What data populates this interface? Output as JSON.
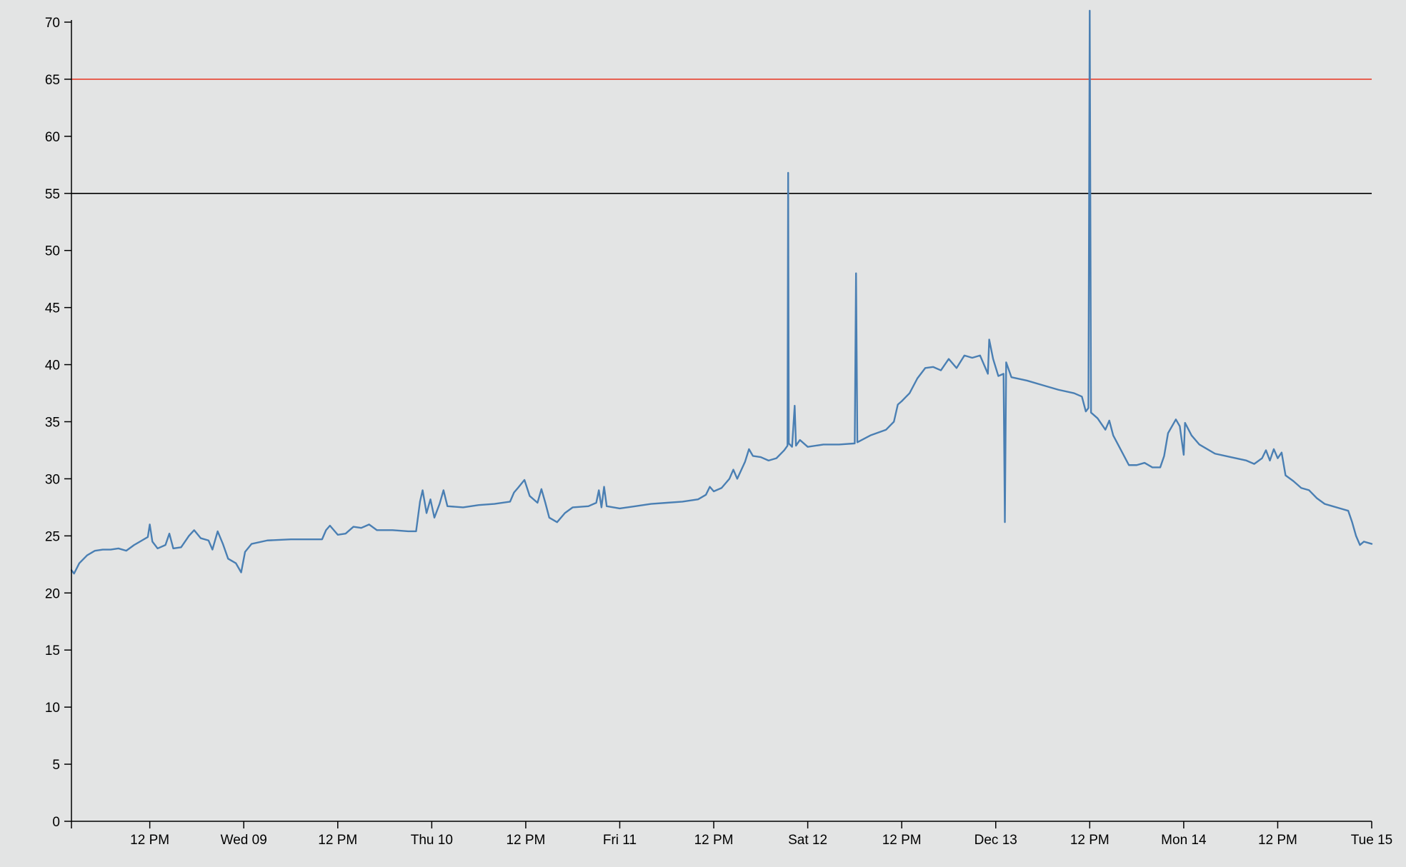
{
  "chart_data": {
    "type": "line",
    "title": "",
    "xlabel": "",
    "ylabel": "",
    "grid": false,
    "legend": "none",
    "x_range": [
      "2020-12-08T02:00",
      "2020-12-15T00:00"
    ],
    "ylim": [
      0,
      70
    ],
    "y_ticks": [
      0,
      5,
      10,
      15,
      20,
      25,
      30,
      35,
      40,
      45,
      50,
      55,
      60,
      65,
      70
    ],
    "x_ticks": [
      {
        "t": "2020-12-08T12:00",
        "label": "12 PM"
      },
      {
        "t": "2020-12-09T00:00",
        "label": "Wed 09"
      },
      {
        "t": "2020-12-09T12:00",
        "label": "12 PM"
      },
      {
        "t": "2020-12-10T00:00",
        "label": "Thu 10"
      },
      {
        "t": "2020-12-10T12:00",
        "label": "12 PM"
      },
      {
        "t": "2020-12-11T00:00",
        "label": "Fri 11"
      },
      {
        "t": "2020-12-11T12:00",
        "label": "12 PM"
      },
      {
        "t": "2020-12-12T00:00",
        "label": "Sat 12"
      },
      {
        "t": "2020-12-12T12:00",
        "label": "12 PM"
      },
      {
        "t": "2020-12-13T00:00",
        "label": "Dec 13"
      },
      {
        "t": "2020-12-13T12:00",
        "label": "12 PM"
      },
      {
        "t": "2020-12-14T00:00",
        "label": "Mon 14"
      },
      {
        "t": "2020-12-14T12:00",
        "label": "12 PM"
      },
      {
        "t": "2020-12-15T00:00",
        "label": "Tue 15"
      }
    ],
    "thresholds": [
      {
        "value": 65,
        "color": "#e8412e"
      },
      {
        "value": 55,
        "color": "#000000"
      }
    ],
    "series": [
      {
        "color": "#4a7fb3",
        "points": [
          [
            "2020-12-08T02:00",
            22.0
          ],
          [
            "2020-12-08T02:20",
            21.7
          ],
          [
            "2020-12-08T03:00",
            22.6
          ],
          [
            "2020-12-08T04:00",
            23.3
          ],
          [
            "2020-12-08T05:00",
            23.7
          ],
          [
            "2020-12-08T06:00",
            23.8
          ],
          [
            "2020-12-08T07:00",
            23.8
          ],
          [
            "2020-12-08T08:00",
            23.9
          ],
          [
            "2020-12-08T09:00",
            23.7
          ],
          [
            "2020-12-08T10:00",
            24.2
          ],
          [
            "2020-12-08T11:00",
            24.6
          ],
          [
            "2020-12-08T11:45",
            24.9
          ],
          [
            "2020-12-08T12:00",
            26.0
          ],
          [
            "2020-12-08T12:20",
            24.5
          ],
          [
            "2020-12-08T13:00",
            23.9
          ],
          [
            "2020-12-08T14:00",
            24.2
          ],
          [
            "2020-12-08T14:30",
            25.2
          ],
          [
            "2020-12-08T15:00",
            23.9
          ],
          [
            "2020-12-08T16:00",
            24.0
          ],
          [
            "2020-12-08T17:00",
            25.0
          ],
          [
            "2020-12-08T17:40",
            25.5
          ],
          [
            "2020-12-08T18:30",
            24.8
          ],
          [
            "2020-12-08T19:30",
            24.6
          ],
          [
            "2020-12-08T20:00",
            23.8
          ],
          [
            "2020-12-08T20:40",
            25.4
          ],
          [
            "2020-12-08T21:20",
            24.3
          ],
          [
            "2020-12-08T22:00",
            23.0
          ],
          [
            "2020-12-08T23:00",
            22.6
          ],
          [
            "2020-12-08T23:40",
            21.8
          ],
          [
            "2020-12-09T00:10",
            23.6
          ],
          [
            "2020-12-09T01:00",
            24.3
          ],
          [
            "2020-12-09T03:00",
            24.6
          ],
          [
            "2020-12-09T06:00",
            24.7
          ],
          [
            "2020-12-09T09:00",
            24.7
          ],
          [
            "2020-12-09T10:00",
            24.7
          ],
          [
            "2020-12-09T10:30",
            25.5
          ],
          [
            "2020-12-09T11:00",
            25.9
          ],
          [
            "2020-12-09T12:00",
            25.1
          ],
          [
            "2020-12-09T13:00",
            25.2
          ],
          [
            "2020-12-09T14:00",
            25.8
          ],
          [
            "2020-12-09T15:00",
            25.7
          ],
          [
            "2020-12-09T16:00",
            26.0
          ],
          [
            "2020-12-09T17:00",
            25.5
          ],
          [
            "2020-12-09T19:00",
            25.5
          ],
          [
            "2020-12-09T21:00",
            25.4
          ],
          [
            "2020-12-09T22:00",
            25.4
          ],
          [
            "2020-12-09T22:30",
            28.0
          ],
          [
            "2020-12-09T22:50",
            29.0
          ],
          [
            "2020-12-09T23:20",
            27.0
          ],
          [
            "2020-12-09T23:50",
            28.2
          ],
          [
            "2020-12-10T00:20",
            26.6
          ],
          [
            "2020-12-10T01:00",
            27.8
          ],
          [
            "2020-12-10T01:30",
            29.0
          ],
          [
            "2020-12-10T02:00",
            27.6
          ],
          [
            "2020-12-10T04:00",
            27.5
          ],
          [
            "2020-12-10T06:00",
            27.7
          ],
          [
            "2020-12-10T08:00",
            27.8
          ],
          [
            "2020-12-10T10:00",
            28.0
          ],
          [
            "2020-12-10T10:30",
            28.8
          ],
          [
            "2020-12-10T11:00",
            29.2
          ],
          [
            "2020-12-10T11:50",
            29.9
          ],
          [
            "2020-12-10T12:30",
            28.5
          ],
          [
            "2020-12-10T13:30",
            27.9
          ],
          [
            "2020-12-10T14:00",
            29.1
          ],
          [
            "2020-12-10T14:30",
            27.9
          ],
          [
            "2020-12-10T15:00",
            26.6
          ],
          [
            "2020-12-10T16:00",
            26.2
          ],
          [
            "2020-12-10T17:00",
            27.0
          ],
          [
            "2020-12-10T18:00",
            27.5
          ],
          [
            "2020-12-10T20:00",
            27.6
          ],
          [
            "2020-12-10T21:00",
            27.9
          ],
          [
            "2020-12-10T21:20",
            29.0
          ],
          [
            "2020-12-10T21:40",
            27.5
          ],
          [
            "2020-12-10T22:00",
            29.3
          ],
          [
            "2020-12-10T22:20",
            27.6
          ],
          [
            "2020-12-11T00:00",
            27.4
          ],
          [
            "2020-12-11T02:00",
            27.6
          ],
          [
            "2020-12-11T04:00",
            27.8
          ],
          [
            "2020-12-11T06:00",
            27.9
          ],
          [
            "2020-12-11T08:00",
            28.0
          ],
          [
            "2020-12-11T10:00",
            28.2
          ],
          [
            "2020-12-11T11:00",
            28.6
          ],
          [
            "2020-12-11T11:30",
            29.3
          ],
          [
            "2020-12-11T12:00",
            28.9
          ],
          [
            "2020-12-11T13:00",
            29.2
          ],
          [
            "2020-12-11T14:00",
            30.0
          ],
          [
            "2020-12-11T14:30",
            30.8
          ],
          [
            "2020-12-11T15:00",
            30.0
          ],
          [
            "2020-12-11T16:00",
            31.5
          ],
          [
            "2020-12-11T16:30",
            32.6
          ],
          [
            "2020-12-11T17:00",
            32.0
          ],
          [
            "2020-12-11T18:00",
            31.9
          ],
          [
            "2020-12-11T19:00",
            31.6
          ],
          [
            "2020-12-11T20:00",
            31.8
          ],
          [
            "2020-12-11T21:00",
            32.5
          ],
          [
            "2020-12-11T21:25",
            32.9
          ],
          [
            "2020-12-11T21:30",
            56.8
          ],
          [
            "2020-12-11T21:35",
            33.1
          ],
          [
            "2020-12-11T22:00",
            32.8
          ],
          [
            "2020-12-11T22:20",
            36.4
          ],
          [
            "2020-12-11T22:30",
            32.9
          ],
          [
            "2020-12-11T23:00",
            33.4
          ],
          [
            "2020-12-12T00:00",
            32.8
          ],
          [
            "2020-12-12T02:00",
            33.0
          ],
          [
            "2020-12-12T04:00",
            33.0
          ],
          [
            "2020-12-12T06:00",
            33.1
          ],
          [
            "2020-12-12T06:10",
            48.0
          ],
          [
            "2020-12-12T06:20",
            33.2
          ],
          [
            "2020-12-12T08:00",
            33.8
          ],
          [
            "2020-12-12T10:00",
            34.3
          ],
          [
            "2020-12-12T11:00",
            35.0
          ],
          [
            "2020-12-12T11:30",
            36.5
          ],
          [
            "2020-12-12T12:00",
            36.8
          ],
          [
            "2020-12-12T13:00",
            37.5
          ],
          [
            "2020-12-12T14:00",
            38.8
          ],
          [
            "2020-12-12T15:00",
            39.7
          ],
          [
            "2020-12-12T16:00",
            39.8
          ],
          [
            "2020-12-12T17:00",
            39.5
          ],
          [
            "2020-12-12T18:00",
            40.5
          ],
          [
            "2020-12-12T19:00",
            39.7
          ],
          [
            "2020-12-12T20:00",
            40.8
          ],
          [
            "2020-12-12T21:00",
            40.6
          ],
          [
            "2020-12-12T22:00",
            40.8
          ],
          [
            "2020-12-12T23:00",
            39.2
          ],
          [
            "2020-12-12T23:10",
            42.2
          ],
          [
            "2020-12-12T23:40",
            40.5
          ],
          [
            "2020-12-13T00:20",
            39.0
          ],
          [
            "2020-12-13T01:00",
            39.2
          ],
          [
            "2020-12-13T01:10",
            26.2
          ],
          [
            "2020-12-13T01:20",
            40.2
          ],
          [
            "2020-12-13T02:00",
            38.9
          ],
          [
            "2020-12-13T04:00",
            38.6
          ],
          [
            "2020-12-13T06:00",
            38.2
          ],
          [
            "2020-12-13T08:00",
            37.8
          ],
          [
            "2020-12-13T10:00",
            37.5
          ],
          [
            "2020-12-13T11:00",
            37.2
          ],
          [
            "2020-12-13T11:30",
            35.9
          ],
          [
            "2020-12-13T11:50",
            36.2
          ],
          [
            "2020-12-13T12:00",
            71.0
          ],
          [
            "2020-12-13T12:10",
            35.8
          ],
          [
            "2020-12-13T13:00",
            35.3
          ],
          [
            "2020-12-13T14:00",
            34.3
          ],
          [
            "2020-12-13T14:30",
            35.1
          ],
          [
            "2020-12-13T15:00",
            33.8
          ],
          [
            "2020-12-13T16:00",
            32.5
          ],
          [
            "2020-12-13T17:00",
            31.2
          ],
          [
            "2020-12-13T18:00",
            31.2
          ],
          [
            "2020-12-13T19:00",
            31.4
          ],
          [
            "2020-12-13T20:00",
            31.0
          ],
          [
            "2020-12-13T21:00",
            31.0
          ],
          [
            "2020-12-13T21:30",
            32.0
          ],
          [
            "2020-12-13T22:00",
            34.0
          ],
          [
            "2020-12-13T23:00",
            35.2
          ],
          [
            "2020-12-13T23:30",
            34.6
          ],
          [
            "2020-12-14T00:00",
            32.1
          ],
          [
            "2020-12-14T00:10",
            34.9
          ],
          [
            "2020-12-14T01:00",
            33.8
          ],
          [
            "2020-12-14T02:00",
            33.0
          ],
          [
            "2020-12-14T04:00",
            32.2
          ],
          [
            "2020-12-14T06:00",
            31.9
          ],
          [
            "2020-12-14T08:00",
            31.6
          ],
          [
            "2020-12-14T09:00",
            31.3
          ],
          [
            "2020-12-14T10:00",
            31.8
          ],
          [
            "2020-12-14T10:30",
            32.5
          ],
          [
            "2020-12-14T11:00",
            31.6
          ],
          [
            "2020-12-14T11:30",
            32.6
          ],
          [
            "2020-12-14T12:00",
            31.8
          ],
          [
            "2020-12-14T12:30",
            32.3
          ],
          [
            "2020-12-14T13:00",
            30.3
          ],
          [
            "2020-12-14T14:00",
            29.8
          ],
          [
            "2020-12-14T15:00",
            29.2
          ],
          [
            "2020-12-14T16:00",
            29.0
          ],
          [
            "2020-12-14T17:00",
            28.3
          ],
          [
            "2020-12-14T18:00",
            27.8
          ],
          [
            "2020-12-14T19:00",
            27.6
          ],
          [
            "2020-12-14T20:00",
            27.4
          ],
          [
            "2020-12-14T21:00",
            27.2
          ],
          [
            "2020-12-14T21:30",
            26.2
          ],
          [
            "2020-12-14T22:00",
            25.0
          ],
          [
            "2020-12-14T22:30",
            24.2
          ],
          [
            "2020-12-14T23:00",
            24.5
          ],
          [
            "2020-12-15T00:00",
            24.3
          ]
        ]
      }
    ]
  }
}
